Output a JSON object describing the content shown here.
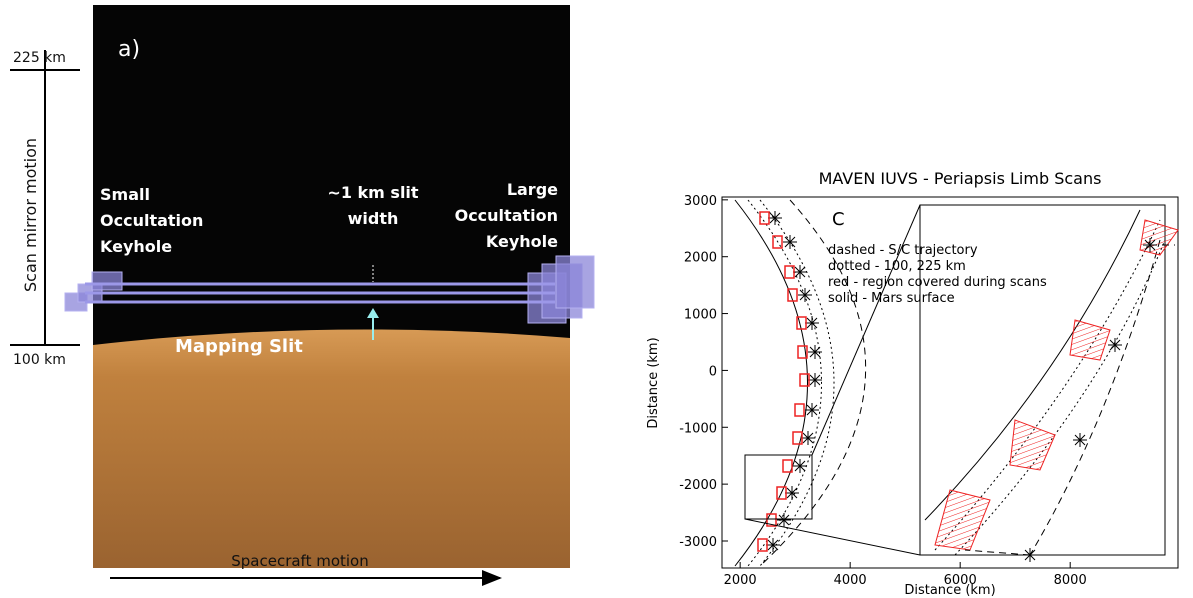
{
  "left_panel": {
    "label": "a)",
    "scale_top": "225 km",
    "scale_bottom": "100 km",
    "vertical_axis": "Scan mirror motion",
    "horizontal_axis": "Spacecraft motion",
    "small_keyhole": [
      "Small",
      "Occultation",
      "Keyhole"
    ],
    "slit_width": [
      "~1 km slit",
      "width"
    ],
    "large_keyhole": [
      "Large",
      "Occultation",
      "Keyhole"
    ],
    "mapping_slit": "Mapping Slit"
  },
  "right_panel": {
    "title": "MAVEN IUVS -  Periapsis Limb Scans",
    "panel_label": "C",
    "x_label": "Distance (km)",
    "y_label": "Distance (km)",
    "xlim": [
      1670,
      9960
    ],
    "ylim": [
      -3475,
      3050
    ],
    "xticks": [
      2000,
      4000,
      6000,
      8000
    ],
    "yticks": [
      3000,
      2000,
      1000,
      0,
      -1000,
      -2000,
      -3000
    ],
    "legend": [
      "dashed - S/C trajectory",
      "dotted - 100, 225 km",
      "red - region covered during scans",
      "solid - Mars surface"
    ]
  }
}
